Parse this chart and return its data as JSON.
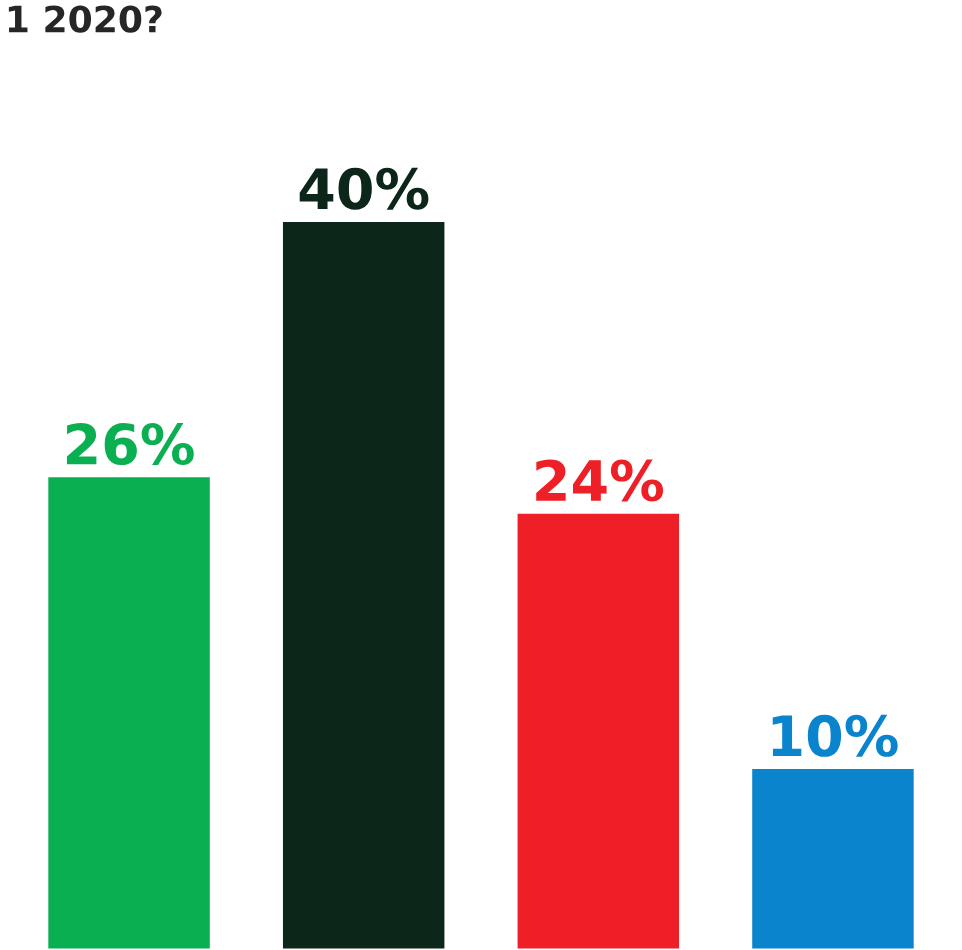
{
  "chart_data": {
    "type": "bar",
    "title": "1 2020?",
    "categories": [
      null,
      null,
      null,
      null
    ],
    "values": [
      26,
      40,
      24,
      10
    ],
    "colors": [
      "#0aaf52",
      "#0d261a",
      "#ee1f26",
      "#0a84cc"
    ],
    "value_labels": [
      "26%",
      "40%",
      "24%",
      "10%"
    ],
    "grid": false,
    "legend": false
  }
}
